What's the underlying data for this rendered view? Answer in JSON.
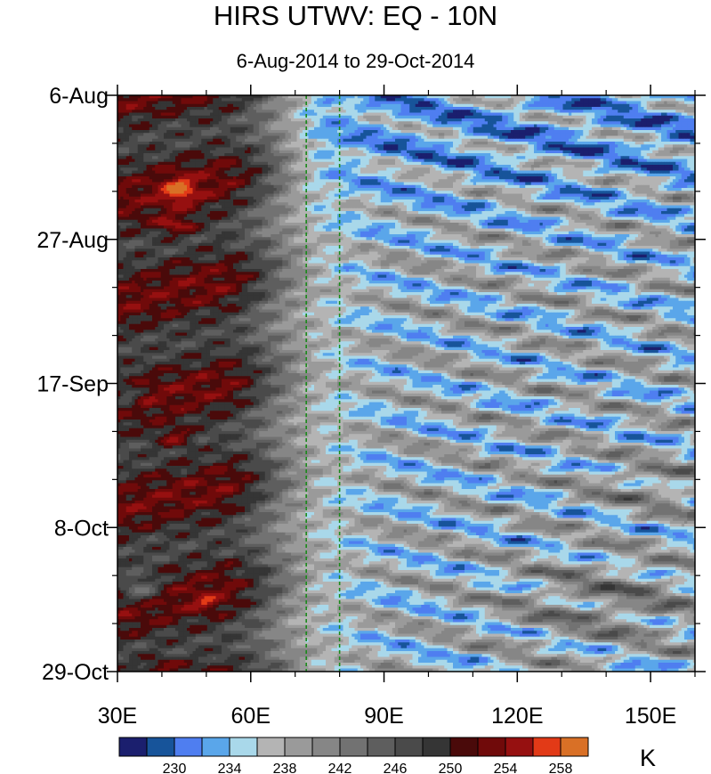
{
  "chart_data": {
    "type": "heatmap",
    "title": "HIRS UTWV: EQ - 10N",
    "subtitle": "6-Aug-2014 to 29-Oct-2014",
    "x_axis": {
      "tick_labels": [
        "30E",
        "60E",
        "90E",
        "120E",
        "150E"
      ],
      "tick_values": [
        30,
        60,
        90,
        120,
        150
      ],
      "range": [
        30,
        160
      ],
      "unit": "longitude (degrees E)"
    },
    "y_axis": {
      "tick_labels": [
        "6-Aug",
        "27-Aug",
        "17-Sep",
        "8-Oct",
        "29-Oct"
      ],
      "tick_dates": [
        "2014-08-06",
        "2014-08-27",
        "2014-09-17",
        "2014-10-08",
        "2014-10-29"
      ],
      "range": [
        "2014-08-06",
        "2014-10-29"
      ],
      "inverted": true
    },
    "reference_lines": [
      {
        "orientation": "vertical",
        "x": 72.5,
        "style": "dashed",
        "color": "#1a8a1a"
      },
      {
        "orientation": "vertical",
        "x": 80,
        "style": "dashed",
        "color": "#1a8a1a"
      }
    ],
    "colorbar": {
      "unit": "K",
      "levels": [
        228,
        230,
        232,
        234,
        236,
        238,
        240,
        242,
        244,
        246,
        248,
        250,
        252,
        254,
        256,
        258
      ],
      "tick_labels": [
        "230",
        "234",
        "238",
        "242",
        "246",
        "250",
        "254",
        "258"
      ],
      "tick_values": [
        230,
        234,
        238,
        242,
        246,
        250,
        254,
        258
      ],
      "colors": [
        "#1b1f6e",
        "#17549a",
        "#4f7ef0",
        "#5aa6ea",
        "#a9d8ea",
        "#b4b4b4",
        "#9a9a9a",
        "#868686",
        "#727272",
        "#5e5e5e",
        "#4a4a4a",
        "#353535",
        "#4a0a0a",
        "#700a0a",
        "#961010",
        "#e23a17",
        "#d97026"
      ]
    },
    "grid": false,
    "description_pattern": "Temperature field: warm/dry values (grey to dark red, 244-256 K) dominate 30E-65E; cool/moist values (blue, 230-238 K) dominate 72E-160E with eastward-tilted streaks."
  }
}
